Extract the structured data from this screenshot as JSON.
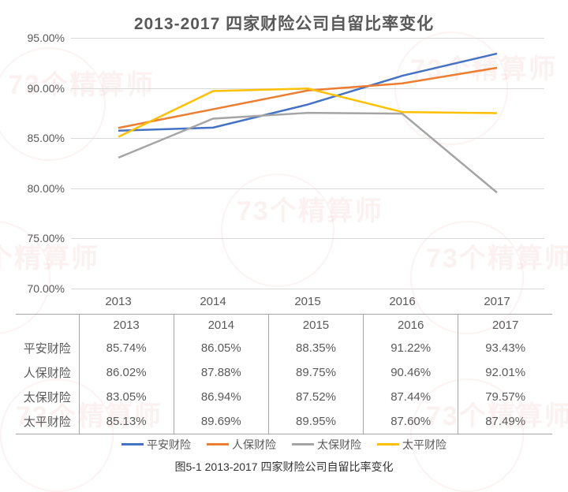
{
  "title": "2013-2017 四家财险公司自留比率变化",
  "caption": "图5-1 2013-2017 四家财险公司自留比率变化",
  "watermark_text": "73个精算师",
  "chart": {
    "type": "line",
    "categories": [
      "2013",
      "2014",
      "2015",
      "2016",
      "2017"
    ],
    "ylim": [
      70,
      95
    ],
    "ytick_step": 5,
    "ytick_labels": [
      "70.00%",
      "75.00%",
      "80.00%",
      "85.00%",
      "90.00%",
      "95.00%"
    ],
    "grid_color": "#d9d9d9",
    "background_color": "#ffffff",
    "axis_font_color": "#595959",
    "axis_fontsize": 14,
    "title_fontsize": 21,
    "title_color": "#595959",
    "line_width": 2.5,
    "series": [
      {
        "name": "平安财险",
        "color": "#4472c4",
        "values": [
          85.74,
          86.05,
          88.35,
          91.22,
          93.43
        ]
      },
      {
        "name": "人保财险",
        "color": "#ed7d31",
        "values": [
          86.02,
          87.88,
          89.75,
          90.46,
          92.01
        ]
      },
      {
        "name": "太保财险",
        "color": "#a5a5a5",
        "values": [
          83.05,
          86.94,
          87.52,
          87.44,
          79.57
        ]
      },
      {
        "name": "太平财险",
        "color": "#ffc000",
        "values": [
          85.13,
          89.69,
          89.95,
          87.6,
          87.49
        ]
      }
    ]
  },
  "table": {
    "row_labels": [
      "平安财险",
      "人保财险",
      "太保财险",
      "太平财险"
    ],
    "columns": [
      "2013",
      "2014",
      "2015",
      "2016",
      "2017"
    ],
    "cells": [
      [
        "85.74%",
        "86.05%",
        "88.35%",
        "91.22%",
        "93.43%"
      ],
      [
        "86.02%",
        "87.88%",
        "89.75%",
        "90.46%",
        "92.01%"
      ],
      [
        "83.05%",
        "86.94%",
        "87.52%",
        "87.44%",
        "79.57%"
      ],
      [
        "85.13%",
        "89.69%",
        "89.95%",
        "87.60%",
        "87.49%"
      ]
    ],
    "border_color": "#a6a6a6",
    "font_color": "#595959",
    "fontsize": 15
  },
  "legend": {
    "items": [
      "平安财险",
      "人保财险",
      "太保财险",
      "太平财险"
    ],
    "colors": [
      "#4472c4",
      "#ed7d31",
      "#a5a5a5",
      "#ffc000"
    ],
    "fontsize": 14,
    "font_color": "#595959"
  }
}
